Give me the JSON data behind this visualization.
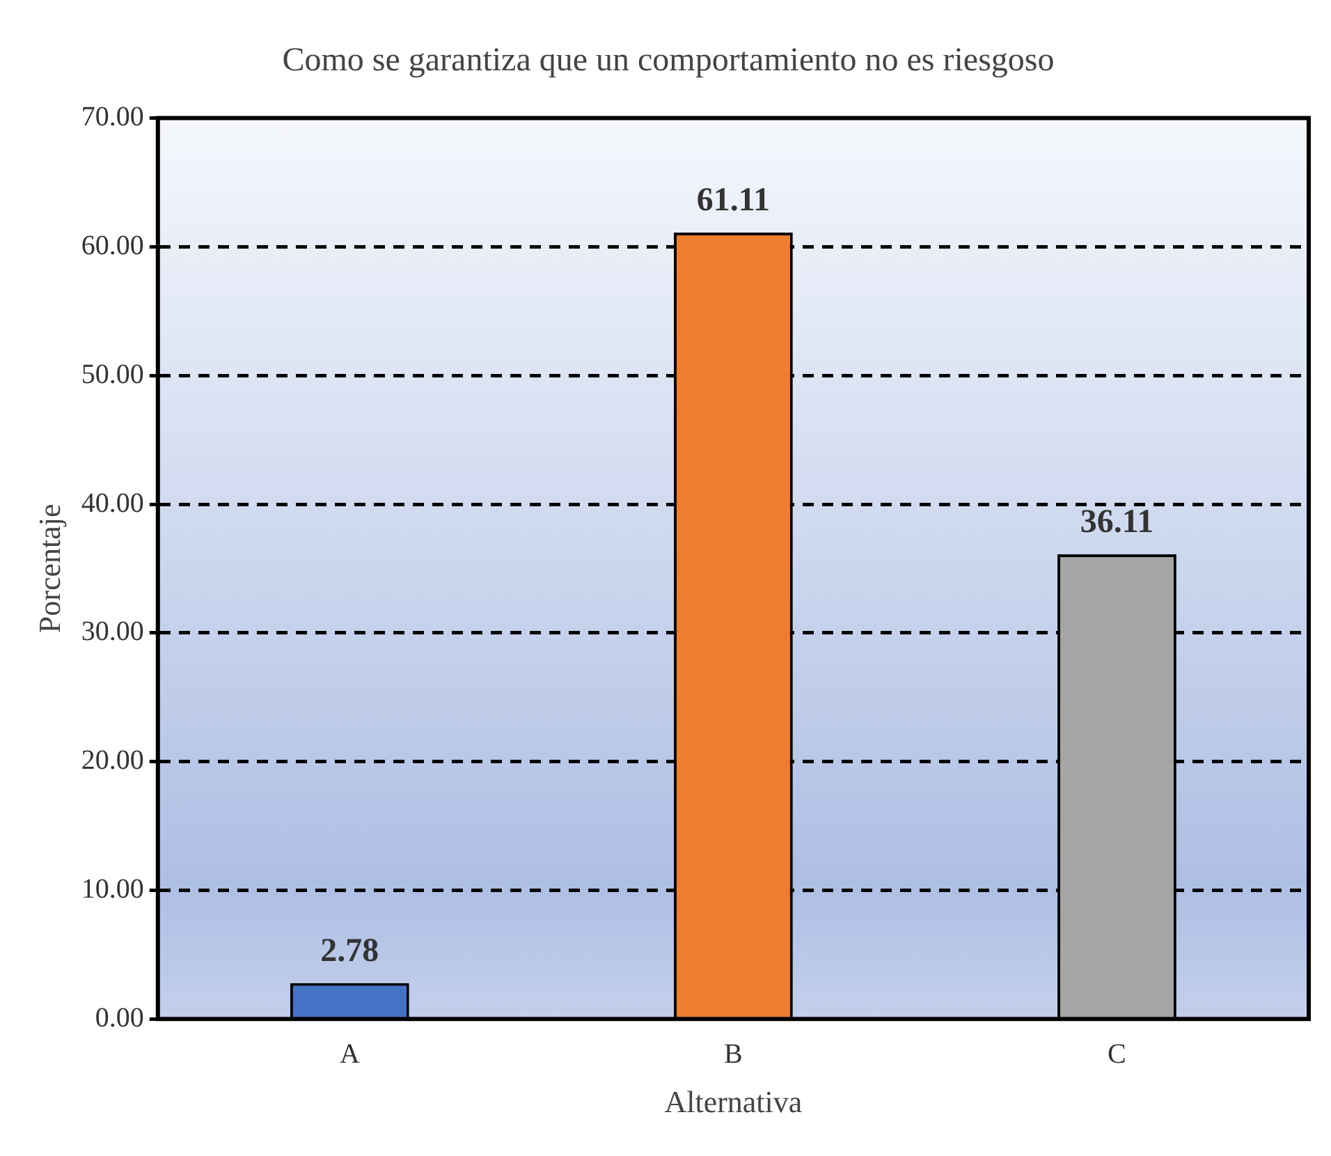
{
  "chart_data": {
    "type": "bar",
    "title": "Como se garantiza que un comportamiento no es riesgoso",
    "xlabel": "Alternativa",
    "ylabel": "Porcentaje",
    "categories": [
      "A",
      "B",
      "C"
    ],
    "values": [
      2.78,
      61.11,
      36.11
    ],
    "value_labels": [
      "2.78",
      "61.11",
      "36.11"
    ],
    "colors": [
      "#4472c4",
      "#ed7d31",
      "#a5a5a5"
    ],
    "ylim": [
      0,
      70
    ],
    "yticks": [
      {
        "value": 0,
        "label": "0.00"
      },
      {
        "value": 10,
        "label": "10.00"
      },
      {
        "value": 20,
        "label": "20.00"
      },
      {
        "value": 30,
        "label": "30.00"
      },
      {
        "value": 40,
        "label": "40.00"
      },
      {
        "value": 50,
        "label": "50.00"
      },
      {
        "value": 60,
        "label": "60.00"
      },
      {
        "value": 70,
        "label": "70.00"
      }
    ],
    "grid": "y",
    "legend": false,
    "line_style": "dashed"
  }
}
